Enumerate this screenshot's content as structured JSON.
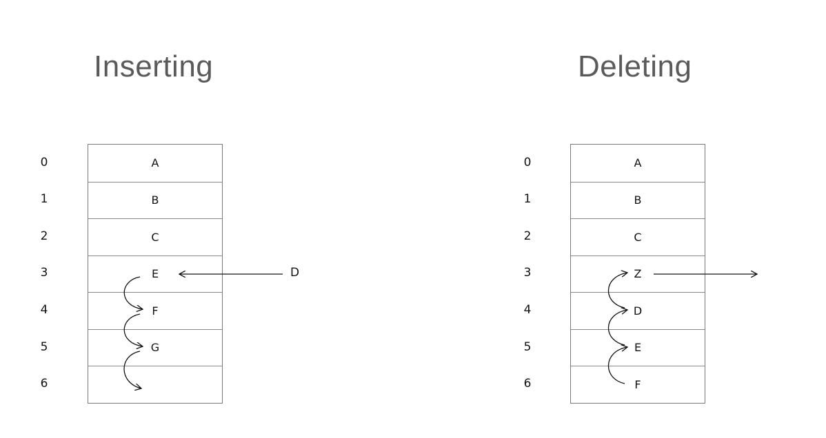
{
  "inserting": {
    "title": "Inserting",
    "indices": [
      "0",
      "1",
      "2",
      "3",
      "4",
      "5",
      "6"
    ],
    "cells": [
      "A",
      "B",
      "C",
      "E",
      "F",
      "G",
      ""
    ],
    "incoming_label": "D"
  },
  "deleting": {
    "title": "Deleting",
    "indices": [
      "0",
      "1",
      "2",
      "3",
      "4",
      "5",
      "6"
    ],
    "cells": [
      "A",
      "B",
      "C",
      "Z",
      "D",
      "E",
      "F"
    ]
  }
}
